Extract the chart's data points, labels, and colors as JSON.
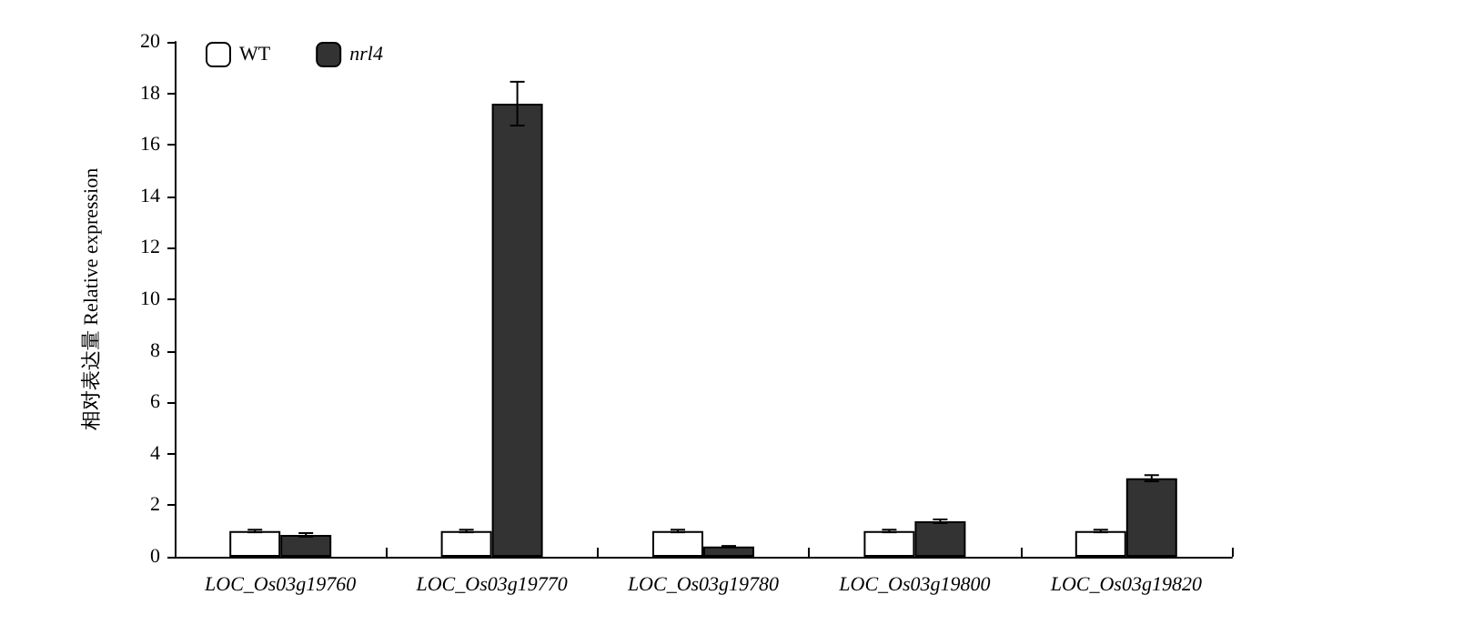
{
  "chart_data": {
    "type": "bar",
    "ylabel": "相对表达量 Relative expression",
    "categories": [
      "LOC_Os03g19760",
      "LOC_Os03g19770",
      "LOC_Os03g19780",
      "LOC_Os03g19800",
      "LOC_Os03g19820"
    ],
    "series": [
      {
        "name": "WT",
        "color": "#ffffff",
        "values": [
          1.0,
          1.0,
          1.0,
          1.0,
          1.0
        ],
        "errors": [
          0.05,
          0.05,
          0.05,
          0.05,
          0.05
        ]
      },
      {
        "name": "nrl4",
        "color": "#333333",
        "values": [
          0.85,
          17.6,
          0.4,
          1.38,
          3.05
        ],
        "errors": [
          0.07,
          0.85,
          0.02,
          0.07,
          0.12
        ]
      }
    ],
    "ylim": [
      0,
      20
    ],
    "yticks": [
      0,
      2,
      4,
      6,
      8,
      10,
      12,
      14,
      16,
      18,
      20
    ],
    "grid": false,
    "legend": "top left"
  }
}
